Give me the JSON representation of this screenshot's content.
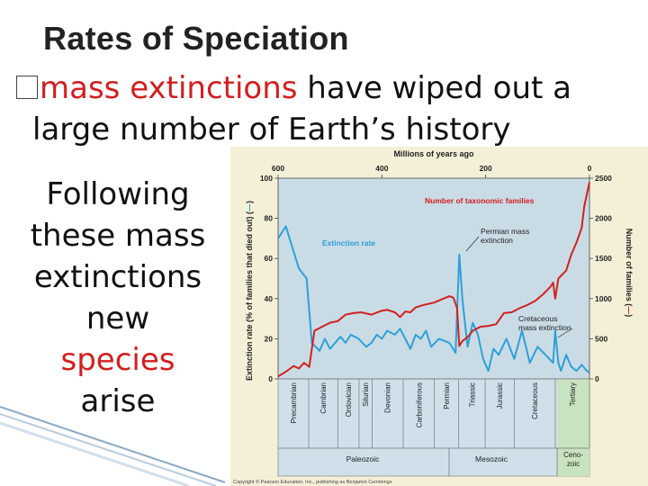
{
  "slide": {
    "title": "Rates of Speciation",
    "bullet_marker": "�",
    "bullet_red": "mass extinctions",
    "bullet_rest": " have wiped out a",
    "bullet_line2": "large number of Earth’s history",
    "side_lines": [
      "Following",
      "these mass",
      "extinctions",
      "new",
      "species",
      "arise"
    ]
  },
  "figure": {
    "top_axis_title": "Millions of years ago",
    "top_ticks": [
      "600",
      "400",
      "200",
      "0"
    ],
    "left_axis_title": "Extinction rate (% of families that died out) (",
    "right_axis_title": "Number of families (",
    "left_ticks": [
      "100",
      "80",
      "60",
      "40",
      "20",
      "0"
    ],
    "right_ticks": [
      "2500",
      "2000",
      "1500",
      "1000",
      "500",
      "0"
    ],
    "label_families": "Number of taxonomic families",
    "label_extinction": "Extinction rate",
    "label_permian": [
      "Permian mass",
      "extinction"
    ],
    "label_cretaceous": [
      "Cretaceous",
      "mass extinction"
    ],
    "periods": [
      "Precambrian",
      "Cambrian",
      "Ordovician",
      "Silurian",
      "Devonian",
      "Carboniferous",
      "Permian",
      "Triassic",
      "Jurassic",
      "Cretaceous",
      "Tertiary"
    ],
    "eras": [
      "Paleozoic",
      "Mesozoic",
      "Ceno-",
      "zoic"
    ],
    "copyright": "Copyright © Pearson Education, Inc., publishing as Benjamin Cummings",
    "colors": {
      "extinction": "#2e9fd8",
      "families": "#d22020",
      "plot_bg": "#c9dce6",
      "geo_bg": "#cfe0ea",
      "cenozoic_bg": "#c8e3c0"
    }
  },
  "chart_data": {
    "type": "line",
    "title": "Millions of years ago",
    "xlabel": "Millions of years ago",
    "ylabel": "Extinction rate (% of families that died out)",
    "y2label": "Number of families",
    "xlim": [
      600,
      0
    ],
    "ylim": [
      0,
      100
    ],
    "y2lim": [
      0,
      2500
    ],
    "series": [
      {
        "name": "Extinction rate",
        "axis": "left",
        "x": [
          600,
          585,
          560,
          545,
          535,
          520,
          510,
          500,
          490,
          480,
          470,
          460,
          445,
          430,
          420,
          410,
          400,
          390,
          375,
          365,
          355,
          345,
          335,
          325,
          315,
          305,
          290,
          270,
          258,
          251,
          245,
          235,
          225,
          215,
          205,
          195,
          185,
          175,
          160,
          145,
          130,
          115,
          100,
          85,
          70,
          66,
          60,
          55,
          45,
          35,
          25,
          15,
          5,
          0
        ],
        "y": [
          70,
          76,
          55,
          50,
          18,
          14,
          20,
          15,
          18,
          21,
          18,
          22,
          20,
          16,
          18,
          22,
          20,
          24,
          22,
          25,
          20,
          15,
          22,
          20,
          24,
          16,
          20,
          18,
          13,
          62,
          40,
          16,
          28,
          22,
          10,
          4,
          15,
          12,
          20,
          10,
          24,
          8,
          16,
          12,
          8,
          24,
          8,
          4,
          12,
          6,
          4,
          7,
          4,
          3
        ]
      },
      {
        "name": "Number of taxonomic families",
        "axis": "right",
        "x": [
          600,
          585,
          570,
          560,
          550,
          540,
          530,
          515,
          500,
          485,
          470,
          455,
          440,
          420,
          400,
          390,
          375,
          365,
          355,
          345,
          335,
          320,
          300,
          285,
          270,
          262,
          255,
          251,
          245,
          235,
          225,
          210,
          195,
          180,
          165,
          150,
          135,
          120,
          105,
          90,
          75,
          70,
          66,
          60,
          45,
          35,
          25,
          15,
          10,
          5,
          0
        ],
        "y": [
          30,
          90,
          160,
          130,
          200,
          150,
          600,
          650,
          700,
          720,
          800,
          820,
          830,
          800,
          850,
          860,
          830,
          770,
          840,
          830,
          890,
          920,
          950,
          990,
          1030,
          1010,
          880,
          410,
          470,
          520,
          600,
          650,
          660,
          680,
          820,
          830,
          880,
          920,
          970,
          1050,
          1150,
          1200,
          1000,
          1250,
          1350,
          1550,
          1700,
          1880,
          2150,
          2300,
          2450
        ]
      }
    ],
    "annotations": [
      "Number of taxonomic families",
      "Extinction rate",
      "Permian mass extinction",
      "Cretaceous mass extinction"
    ],
    "grid": false,
    "legend": "none"
  }
}
